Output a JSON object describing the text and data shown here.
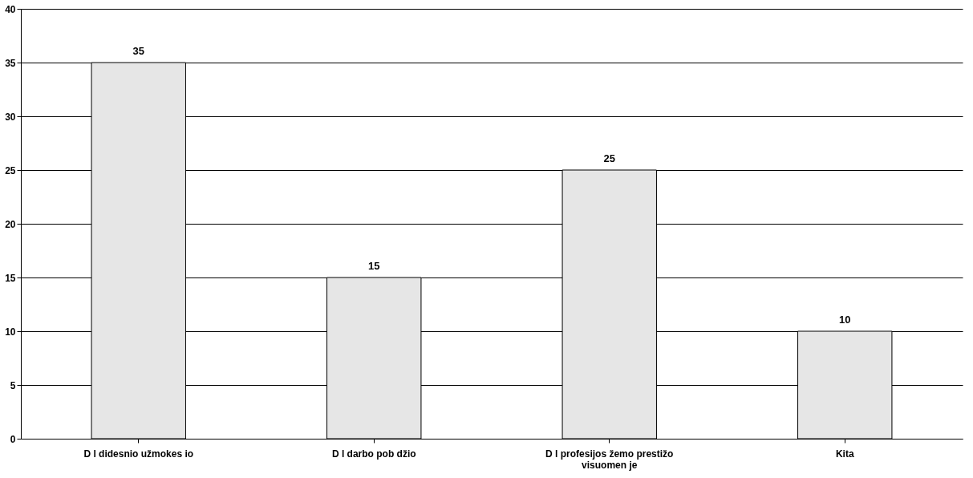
{
  "chart_data": {
    "type": "bar",
    "categories": [
      "D  l didesnio užmokes  io",
      "D  l darbo pob  džio",
      "D  l profesijos žemo prestižo visuomen  je",
      "Kita"
    ],
    "values": [
      35,
      15,
      25,
      10
    ],
    "color": "#e6e6e6",
    "ylim": [
      0,
      40
    ],
    "yticks": [
      0,
      5,
      10,
      15,
      20,
      25,
      30,
      35,
      40
    ],
    "grid": "y",
    "data_labels": true
  }
}
